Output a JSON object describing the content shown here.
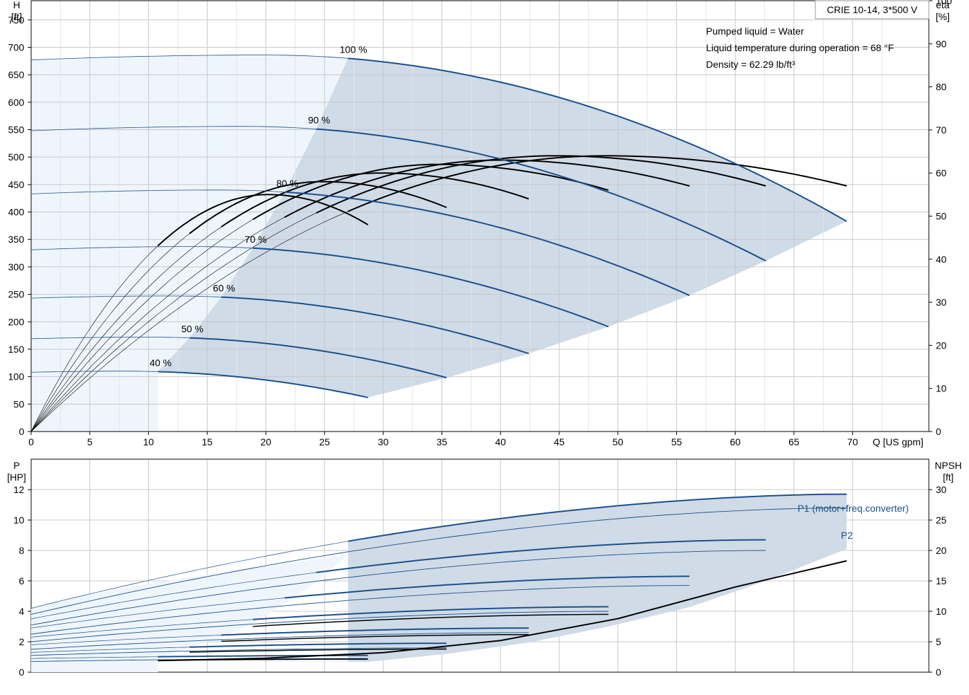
{
  "colors": {
    "head_curve": "#1a4f8c",
    "power_curve": "#1a4f8c",
    "light_region": "#eef5fc",
    "shaded_region": "#cfdbe7",
    "efficiency_curve": "#000000",
    "grid": "#c8c8c8",
    "series_label": "#1a4f8c"
  },
  "header": {
    "pump_model": "CRIE 10-14, 3*500 V",
    "info": [
      "Pumped liquid = Water",
      "Liquid temperature during operation = 68 °F",
      "Density = 62.29 lb/ft³"
    ]
  },
  "chart_data": [
    {
      "type": "line",
      "title": "",
      "xlabel": "Q [US gpm]",
      "ylabel_left": [
        "H",
        "[ft]"
      ],
      "ylabel_right": [
        "eta",
        "[%]"
      ],
      "xlim": [
        0,
        76.5
      ],
      "ylim_left": [
        0,
        785
      ],
      "ylim_right": [
        0,
        100
      ],
      "x_ticks": [
        0,
        5,
        10,
        15,
        20,
        25,
        30,
        35,
        40,
        45,
        50,
        55,
        60,
        65,
        70
      ],
      "y_ticks_left": [
        0,
        50,
        100,
        150,
        200,
        250,
        300,
        350,
        400,
        450,
        500,
        550,
        600,
        650,
        700,
        750
      ],
      "y_ticks_right": [
        0,
        10,
        20,
        30,
        40,
        50,
        60,
        70,
        80,
        90,
        100
      ],
      "grid": true,
      "head_curves": [
        {
          "name": "100 %",
          "shutoff_head": 677,
          "peak_head": 686,
          "peak_q": 20,
          "min_q": 27.0,
          "max_q": 69.5,
          "end_head": 383
        },
        {
          "name": "90 %",
          "shutoff_head": 548,
          "peak_head": 556,
          "peak_q": 18,
          "min_q": 24.3,
          "max_q": 62.6,
          "end_head": 311
        },
        {
          "name": "80 %",
          "shutoff_head": 433,
          "peak_head": 440,
          "peak_q": 16,
          "min_q": 21.6,
          "max_q": 56.1,
          "end_head": 248
        },
        {
          "name": "70 %",
          "shutoff_head": 331,
          "peak_head": 337,
          "peak_q": 14,
          "min_q": 18.9,
          "max_q": 49.2,
          "end_head": 191
        },
        {
          "name": "60 %",
          "shutoff_head": 243,
          "peak_head": 247,
          "peak_q": 12,
          "min_q": 16.2,
          "max_q": 42.4,
          "end_head": 142
        },
        {
          "name": "50 %",
          "shutoff_head": 169,
          "peak_head": 172,
          "peak_q": 10,
          "min_q": 13.5,
          "max_q": 35.4,
          "end_head": 98
        },
        {
          "name": "40 %",
          "shutoff_head": 108,
          "peak_head": 110,
          "peak_q": 8,
          "min_q": 10.8,
          "max_q": 28.7,
          "end_head": 62
        }
      ],
      "efficiency_curves": [
        {
          "max_q": 69.5,
          "bep_q": 49.0,
          "bep_eta": 64,
          "end_eta": 57
        },
        {
          "max_q": 62.6,
          "bep_q": 44.6,
          "bep_eta": 64,
          "end_eta": 57
        },
        {
          "max_q": 56.1,
          "bep_q": 39.9,
          "bep_eta": 63,
          "end_eta": 57
        },
        {
          "max_q": 49.2,
          "bep_q": 34.6,
          "bep_eta": 62,
          "end_eta": 56
        },
        {
          "max_q": 42.4,
          "bep_q": 29.8,
          "bep_eta": 60,
          "end_eta": 54
        },
        {
          "max_q": 35.4,
          "bep_q": 24.8,
          "bep_eta": 58,
          "end_eta": 52
        },
        {
          "max_q": 28.7,
          "bep_q": 20.2,
          "bep_eta": 55,
          "end_eta": 48
        }
      ]
    },
    {
      "type": "line",
      "title": "",
      "xlabel": "",
      "ylabel_left": [
        "P",
        "[HP]"
      ],
      "ylabel_right": [
        "NPSH",
        "[ft]"
      ],
      "xlim": [
        0,
        76.5
      ],
      "ylim_left": [
        0,
        14
      ],
      "ylim_right": [
        0,
        35
      ],
      "y_ticks_left": [
        0,
        2,
        4,
        6,
        8,
        10,
        12
      ],
      "y_ticks_right": [
        0,
        5,
        10,
        15,
        20,
        25,
        30
      ],
      "grid": true,
      "series_labels": [
        {
          "name": "P1 (motor+freq.converter)",
          "q": 71
        },
        {
          "name": "P2",
          "q": 71
        }
      ],
      "power_curves": [
        {
          "max_q": 69.5,
          "p1_start": 4.2,
          "p1_end": 11.7,
          "p2_start": 3.8,
          "p2_end": 10.8
        },
        {
          "max_q": 62.6,
          "p1_start": 3.5,
          "p1_end": 8.7,
          "p2_start": 3.1,
          "p2_end": 8.0
        },
        {
          "max_q": 56.1,
          "p1_start": 2.9,
          "p1_end": 6.3,
          "p2_start": 2.5,
          "p2_end": 5.7
        },
        {
          "max_q": 49.2,
          "p1_start": 2.3,
          "p1_end": 4.3,
          "p2_start": 2.0,
          "p2_end": 4.0
        },
        {
          "max_q": 42.4,
          "p1_start": 1.8,
          "p1_end": 2.9,
          "p2_start": 1.5,
          "p2_end": 2.6
        },
        {
          "max_q": 35.4,
          "p1_start": 1.3,
          "p1_end": 1.9,
          "p2_start": 1.1,
          "p2_end": 1.6
        },
        {
          "max_q": 28.7,
          "p1_start": 0.9,
          "p1_end": 1.1,
          "p2_start": 0.7,
          "p2_end": 0.9
        }
      ],
      "npsh_curve": {
        "q": [
          10.8,
          20,
          30,
          40,
          50,
          60,
          69.5
        ],
        "npsh": [
          1.9,
          2.3,
          3.2,
          5.2,
          8.8,
          14,
          18.3
        ]
      }
    }
  ]
}
